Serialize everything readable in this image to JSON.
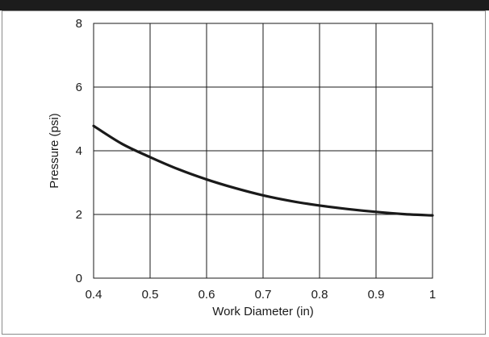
{
  "chart_data": {
    "type": "line",
    "title": "",
    "xlabel": "Work Diameter (in)",
    "ylabel": "Pressure (psi)",
    "xlim": [
      0.4,
      1.0
    ],
    "ylim": [
      0,
      8
    ],
    "grid": true,
    "x_ticks": [
      "0.4",
      "0.5",
      "0.6",
      "0.7",
      "0.8",
      "0.9",
      "1"
    ],
    "y_ticks": [
      "0",
      "2",
      "4",
      "6",
      "8"
    ],
    "series": [
      {
        "line_color": "#1a1a1a",
        "x": [
          0.4,
          0.45,
          0.5,
          0.55,
          0.6,
          0.65,
          0.7,
          0.75,
          0.8,
          0.85,
          0.9,
          0.95,
          1.0
        ],
        "y": [
          4.78,
          4.22,
          3.8,
          3.42,
          3.1,
          2.83,
          2.6,
          2.42,
          2.28,
          2.17,
          2.08,
          2.01,
          1.97
        ]
      }
    ]
  }
}
